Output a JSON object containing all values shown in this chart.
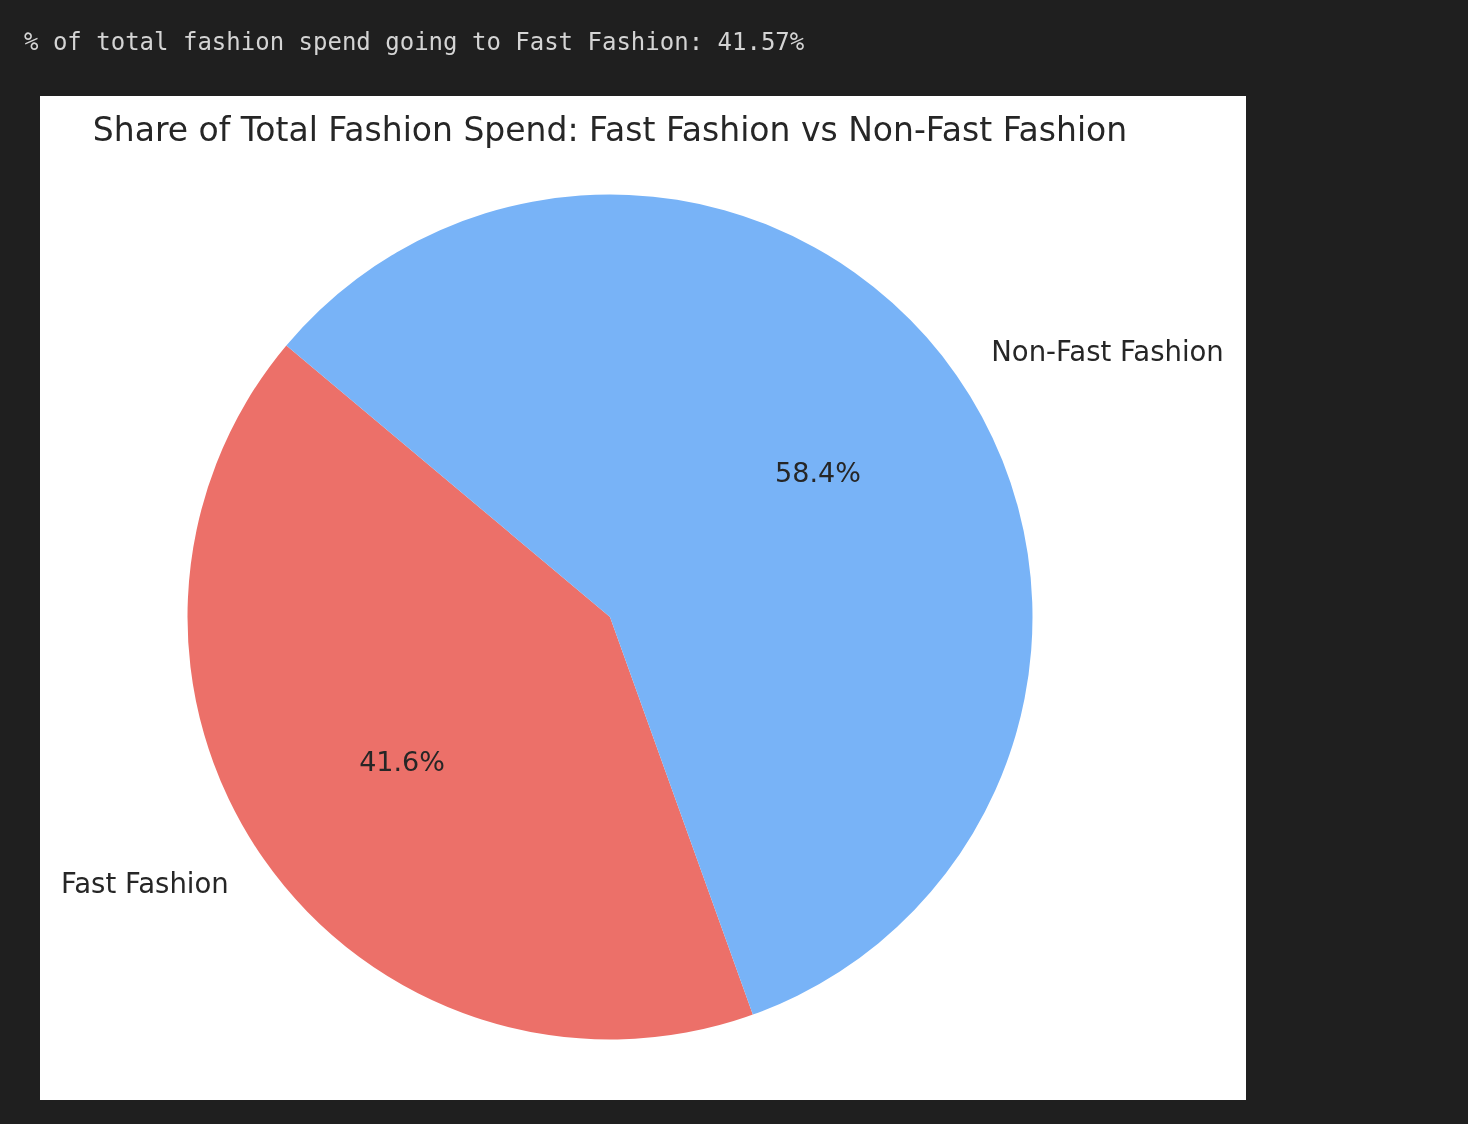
{
  "chart_data": {
    "type": "pie",
    "title": "Share of Total Fashion Spend: Fast Fashion vs Non-Fast Fashion",
    "categories": [
      "Fast Fashion",
      "Non-Fast Fashion"
    ],
    "values": [
      41.6,
      58.4
    ],
    "value_labels": [
      "41.6%",
      "58.4%"
    ],
    "colors": [
      "#ec7069",
      "#78b3f7"
    ],
    "annotations": [
      "% of total fashion spend going to Fast Fashion: 41.57%"
    ]
  }
}
